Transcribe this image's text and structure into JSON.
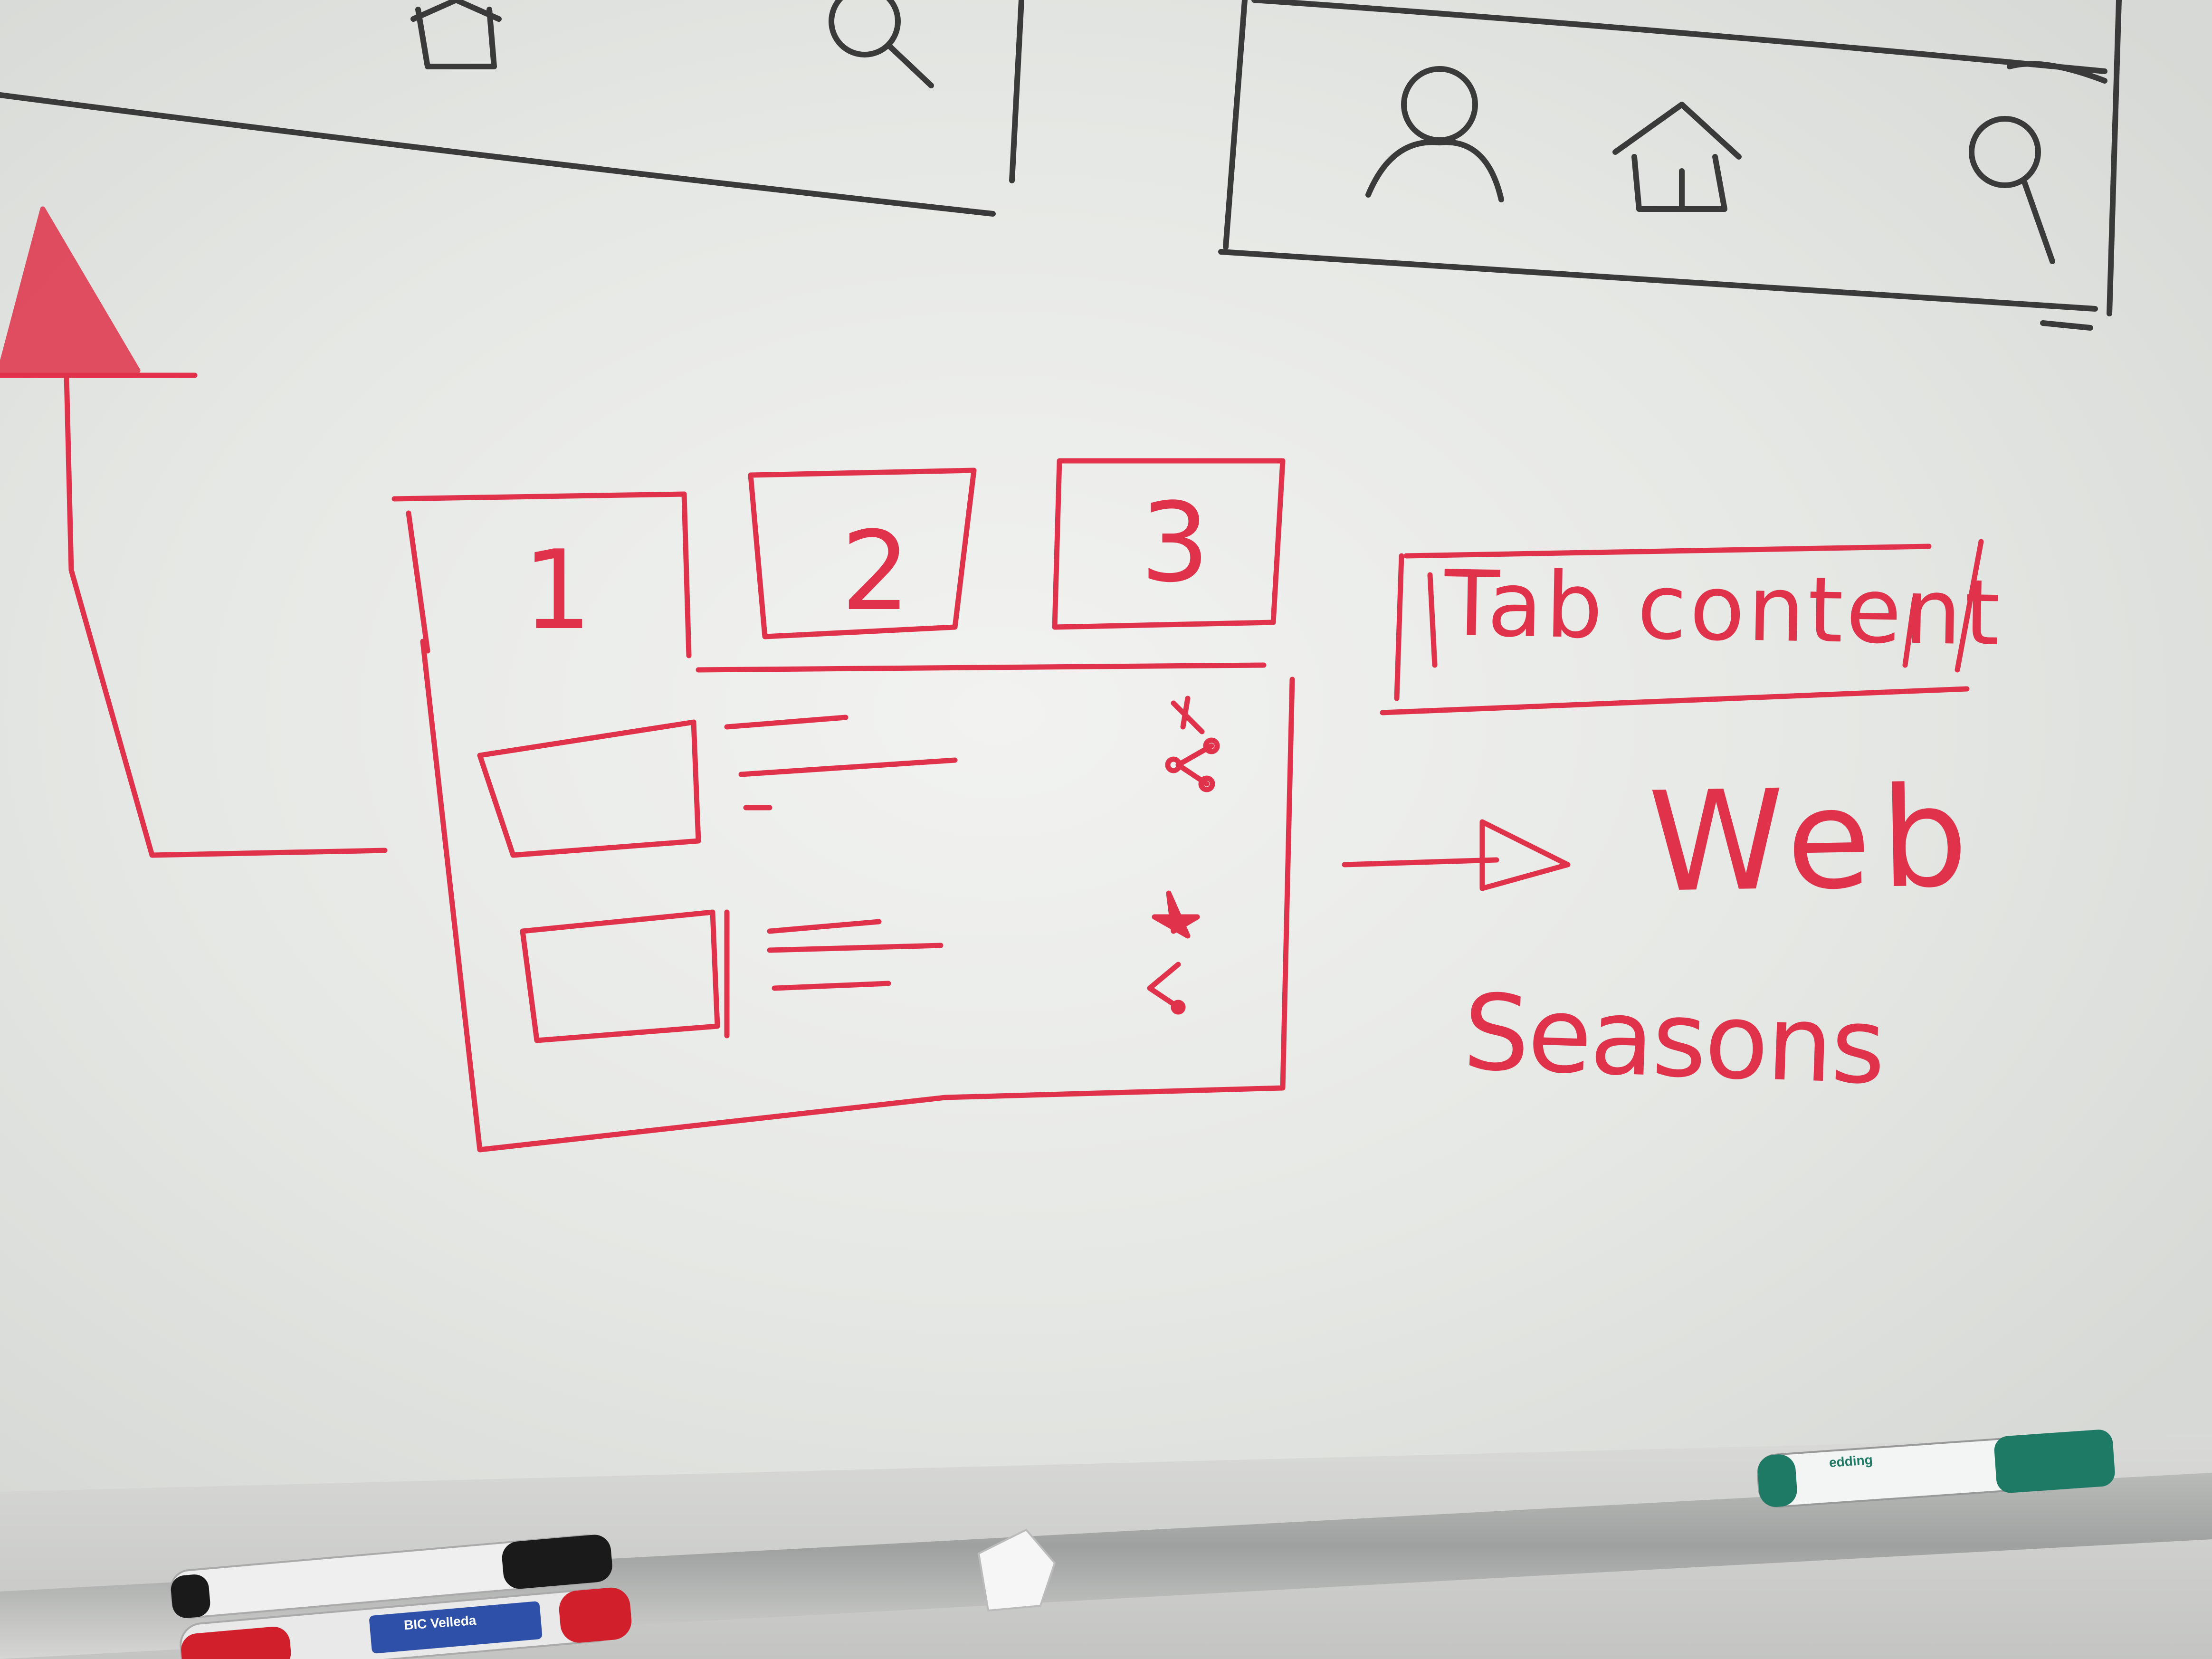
{
  "sketch": {
    "tabs": [
      "1",
      "2",
      "3"
    ],
    "tab_content_label": "Tab content",
    "arrow_target": "Web",
    "subtitle": "Seasons"
  },
  "ink_colors": {
    "red": "#e0334b",
    "black": "#3a3a3a"
  },
  "icons": {
    "top_bar_left": [
      "home-icon",
      "search-icon"
    ],
    "top_bar_right": [
      "user-icon",
      "home-icon",
      "search-icon"
    ],
    "list_row_1": [
      "star-icon",
      "share-icon"
    ],
    "list_row_2": [
      "star-icon",
      "share-icon"
    ]
  },
  "markers": {
    "left": "BIC Velleda",
    "right": "edding"
  }
}
